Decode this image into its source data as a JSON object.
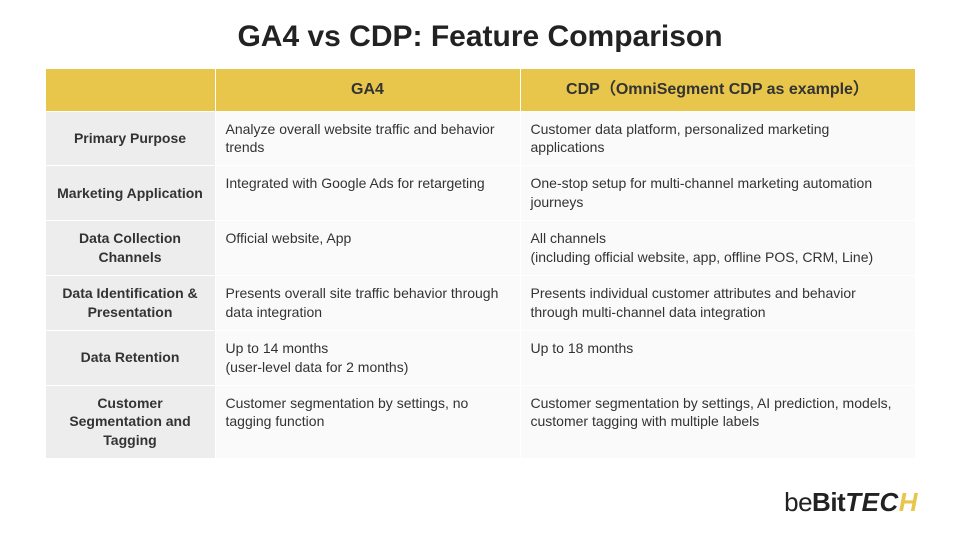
{
  "title": "GA4 vs CDP: Feature Comparison",
  "colors": {
    "header_bg": "#e8c54b",
    "row_label_bg": "#ededed",
    "data_bg": "#fafafa",
    "border": "#ffffff",
    "text": "#333333",
    "logo_accent": "#e8c54b"
  },
  "table": {
    "columns": [
      "",
      "GA4",
      "CDP（OmniSegment CDP as example）"
    ],
    "rows": [
      {
        "label": "Primary Purpose",
        "ga4": "Analyze overall website traffic and behavior trends",
        "cdp": "Customer data platform, personalized marketing applications"
      },
      {
        "label": "Marketing Application",
        "ga4": "Integrated with Google Ads for retargeting",
        "cdp": "One-stop setup for multi-channel marketing automation journeys"
      },
      {
        "label": "Data Collection Channels",
        "ga4": "Official website, App",
        "cdp": "All channels\n(including official website, app, offline POS, CRM, Line)"
      },
      {
        "label": "Data Identification & Presentation",
        "ga4": "Presents overall site traffic behavior through data integration",
        "cdp": "Presents individual customer attributes and behavior through multi-channel data integration"
      },
      {
        "label": "Data Retention",
        "ga4": "Up to 14 months\n(user-level data for 2 months)",
        "cdp": "Up to 18 months"
      },
      {
        "label": "Customer Segmentation and Tagging",
        "ga4": "Customer segmentation by settings, no tagging function",
        "cdp": "Customer segmentation by settings, AI prediction, models, customer tagging with multiple labels"
      }
    ]
  },
  "logo": {
    "part1": "be",
    "part2": "Bit",
    "part3": "TEC",
    "part4": "H"
  }
}
